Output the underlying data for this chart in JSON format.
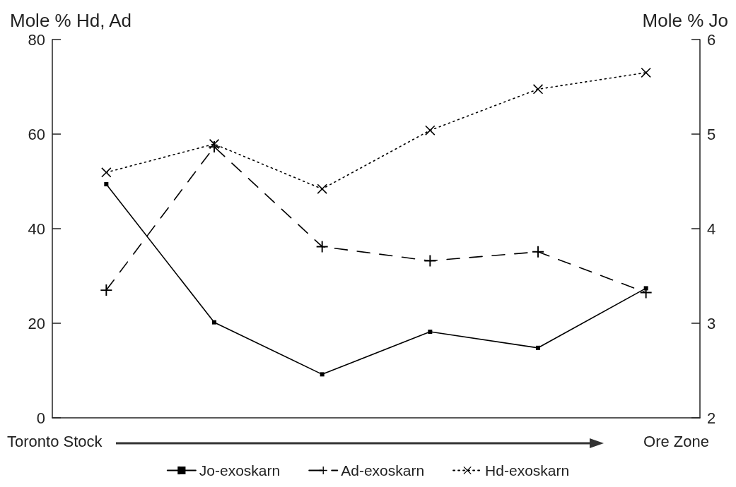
{
  "chart_data": {
    "type": "line",
    "ylabel": "Mole % Hd, Ad",
    "y2label": "Mole % Jo",
    "annotations": [
      "Toronto Stock",
      "Ore Zone"
    ],
    "categories": [
      null,
      null,
      null,
      null,
      null,
      null
    ],
    "series": [
      {
        "name": "Jo-exoskarn",
        "color": "#000000",
        "axis": "y2",
        "marker": "square",
        "line_style": "solid",
        "values": [
          4.47,
          3.01,
          2.46,
          2.91,
          2.74,
          3.37
        ]
      },
      {
        "name": "Ad-exoskarn",
        "color": "#000000",
        "marker": "cross",
        "line_style": "dashed",
        "values": [
          27.0,
          57.3,
          36.2,
          33.2,
          35.1,
          26.5
        ]
      },
      {
        "name": "Hd-exoskarn",
        "color": "#000000",
        "marker": "x",
        "line_style": "dotted",
        "values": [
          51.9,
          57.9,
          48.4,
          60.8,
          69.5,
          73.0
        ]
      }
    ],
    "ylim": [
      0,
      80
    ],
    "yticks": [
      0,
      20,
      40,
      60,
      80
    ],
    "y2lim": [
      2,
      6
    ],
    "y2ticks": [
      2,
      3,
      4,
      5,
      6
    ],
    "grid": false,
    "legend": "bottom",
    "tick_labels": "y"
  }
}
